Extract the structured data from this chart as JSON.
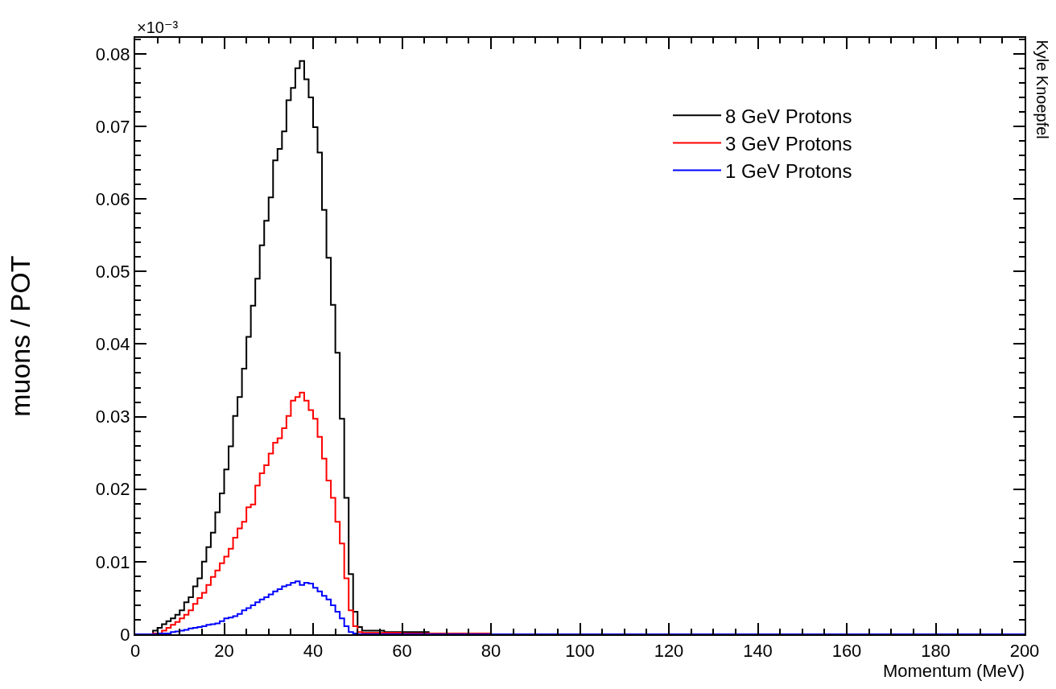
{
  "chart_data": {
    "type": "step",
    "xlabel": "Momentum (MeV)",
    "ylabel": "muons / POT",
    "annotations": [
      "×10⁻³",
      "Kyle Knoepfel"
    ],
    "xlim": [
      0,
      200
    ],
    "xticks": [
      0,
      20,
      40,
      60,
      80,
      100,
      120,
      140,
      160,
      180,
      200
    ],
    "ylim": [
      0,
      0.0822
    ],
    "yticks": [
      0,
      0.01,
      0.02,
      0.03,
      0.04,
      0.05,
      0.06,
      0.07,
      0.08
    ],
    "grid": false,
    "legend": "top right",
    "marker": "none",
    "line_style": "solid",
    "series": [
      {
        "name": "8 GeV Protons",
        "color": "#000000",
        "x": [
          0,
          4,
          5,
          6,
          7,
          8,
          9,
          10,
          11,
          12,
          13,
          14,
          15,
          16,
          17,
          18,
          19,
          20,
          21,
          22,
          23,
          24,
          25,
          26,
          27,
          28,
          29,
          30,
          31,
          32,
          33,
          34,
          35,
          36,
          37,
          38,
          39,
          40,
          41,
          42,
          43,
          44,
          45,
          46,
          47,
          48,
          49,
          50,
          51,
          56,
          66,
          76,
          200
        ],
        "values": [
          0,
          0.0005,
          0.0009,
          0.0014,
          0.0018,
          0.0022,
          0.0027,
          0.0033,
          0.0044,
          0.0051,
          0.0066,
          0.0077,
          0.01,
          0.012,
          0.014,
          0.0168,
          0.0194,
          0.0227,
          0.0259,
          0.0301,
          0.0327,
          0.0366,
          0.041,
          0.0453,
          0.049,
          0.0536,
          0.057,
          0.0602,
          0.0653,
          0.0669,
          0.0693,
          0.0736,
          0.0753,
          0.078,
          0.079,
          0.0765,
          0.074,
          0.0699,
          0.0664,
          0.0585,
          0.0519,
          0.0454,
          0.0388,
          0.0297,
          0.0188,
          0.0083,
          0.0031,
          0.001,
          0.0005,
          0.0003,
          0.0001,
          0,
          0
        ]
      },
      {
        "name": "3 GeV Protons",
        "color": "#ff0000",
        "x": [
          0,
          4,
          5,
          6,
          7,
          8,
          9,
          10,
          11,
          12,
          13,
          14,
          15,
          16,
          17,
          18,
          19,
          20,
          21,
          22,
          23,
          24,
          25,
          26,
          27,
          28,
          29,
          30,
          31,
          32,
          33,
          34,
          35,
          36,
          37,
          38,
          39,
          40,
          41,
          42,
          43,
          44,
          45,
          46,
          47,
          48,
          49,
          50,
          51,
          60,
          80,
          200
        ],
        "values": [
          0,
          0.0001,
          0.0001,
          0.0005,
          0.0009,
          0.0013,
          0.0017,
          0.0022,
          0.0027,
          0.0033,
          0.0042,
          0.005,
          0.0057,
          0.0068,
          0.0079,
          0.0088,
          0.0098,
          0.0107,
          0.0118,
          0.0133,
          0.0146,
          0.0155,
          0.0175,
          0.0179,
          0.0205,
          0.0222,
          0.0233,
          0.0249,
          0.0264,
          0.027,
          0.0284,
          0.0301,
          0.0322,
          0.0327,
          0.0333,
          0.0322,
          0.0309,
          0.0297,
          0.0272,
          0.0242,
          0.0212,
          0.0188,
          0.0155,
          0.0125,
          0.0077,
          0.0033,
          0.0011,
          0.0003,
          0.0002,
          0.0001,
          0,
          0
        ]
      },
      {
        "name": "1 GeV Protons",
        "color": "#0000ff",
        "x": [
          0,
          5,
          6,
          7,
          8,
          9,
          10,
          11,
          12,
          13,
          14,
          15,
          16,
          17,
          18,
          19,
          20,
          21,
          22,
          23,
          24,
          25,
          26,
          27,
          28,
          29,
          30,
          31,
          32,
          33,
          34,
          35,
          36,
          37,
          38,
          39,
          40,
          41,
          42,
          43,
          44,
          45,
          46,
          47,
          48,
          49,
          50,
          200
        ],
        "values": [
          0,
          0.0001,
          0.0001,
          0.0001,
          0.0003,
          0.0004,
          0.0005,
          0.0006,
          0.0008,
          0.0009,
          0.001,
          0.0011,
          0.0013,
          0.0014,
          0.0015,
          0.0018,
          0.0022,
          0.0023,
          0.0025,
          0.0028,
          0.0033,
          0.0036,
          0.004,
          0.0044,
          0.0048,
          0.0051,
          0.0055,
          0.0059,
          0.0062,
          0.0066,
          0.0068,
          0.0071,
          0.0073,
          0.0068,
          0.0071,
          0.007,
          0.0064,
          0.0059,
          0.0053,
          0.0048,
          0.004,
          0.0031,
          0.0022,
          0.0011,
          0.0003,
          0.0001,
          0,
          0
        ]
      }
    ]
  }
}
